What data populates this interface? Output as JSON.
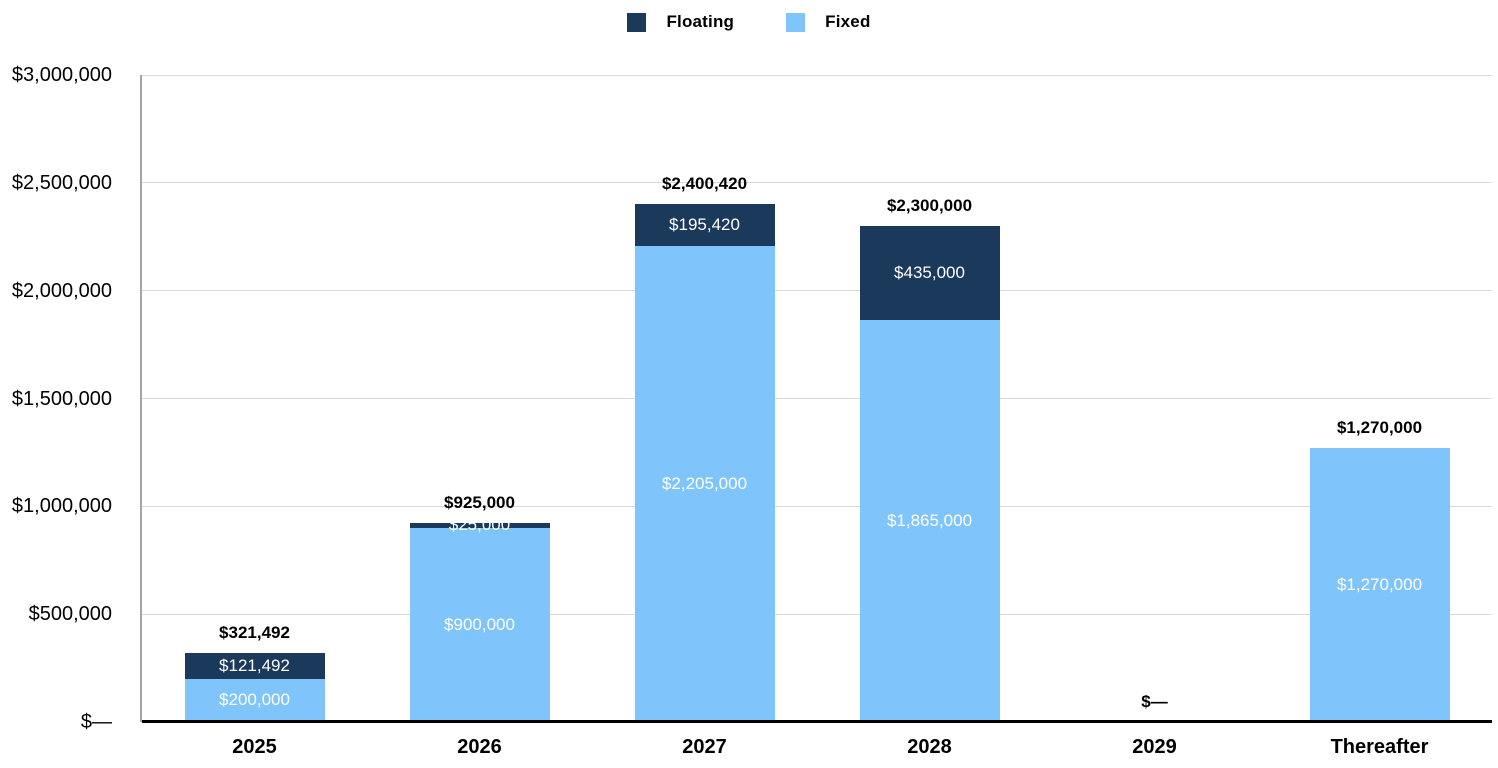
{
  "legend": {
    "items": [
      {
        "label": "Floating",
        "color": "#1A395B"
      },
      {
        "label": "Fixed",
        "color": "#7FC4FA"
      }
    ]
  },
  "chart_data": {
    "type": "bar",
    "stacked": true,
    "title": "",
    "xlabel": "",
    "ylabel": "",
    "categories": [
      "2025",
      "2026",
      "2027",
      "2028",
      "2029",
      "Thereafter"
    ],
    "series": [
      {
        "name": "Fixed",
        "color": "#7FC4FA",
        "label_color": "#FFFFFF",
        "values": [
          200000,
          900000,
          2205000,
          1865000,
          0,
          1270000
        ],
        "labels": [
          "$200,000",
          "$900,000",
          "$2,205,000",
          "$1,865,000",
          "",
          "$1,270,000"
        ]
      },
      {
        "name": "Floating",
        "color": "#1A395B",
        "label_color": "#FFFFFF",
        "values": [
          121492,
          25000,
          195420,
          435000,
          0,
          0
        ],
        "labels": [
          "$121,492",
          "$25,000",
          "$195,420",
          "$435,000",
          "",
          ""
        ]
      }
    ],
    "totals": [
      321492,
      925000,
      2400420,
      2300000,
      0,
      1270000
    ],
    "total_labels": [
      "$321,492",
      "$925,000",
      "$2,400,420",
      "$2,300,000",
      "$—",
      "$1,270,000"
    ],
    "ylim": [
      0,
      3000000
    ],
    "ytick_interval": 500000,
    "ytick_labels": [
      "$—",
      "$500,000",
      "$1,000,000",
      "$1,500,000",
      "$2,000,000",
      "$2,500,000",
      "$3,000,000"
    ],
    "grid": true,
    "legend_position": "top-center",
    "axis_colors": {
      "y_axis_line": "#A6A6A6",
      "x_axis_line": "#000000",
      "gridline": "#D9D9D9"
    }
  }
}
